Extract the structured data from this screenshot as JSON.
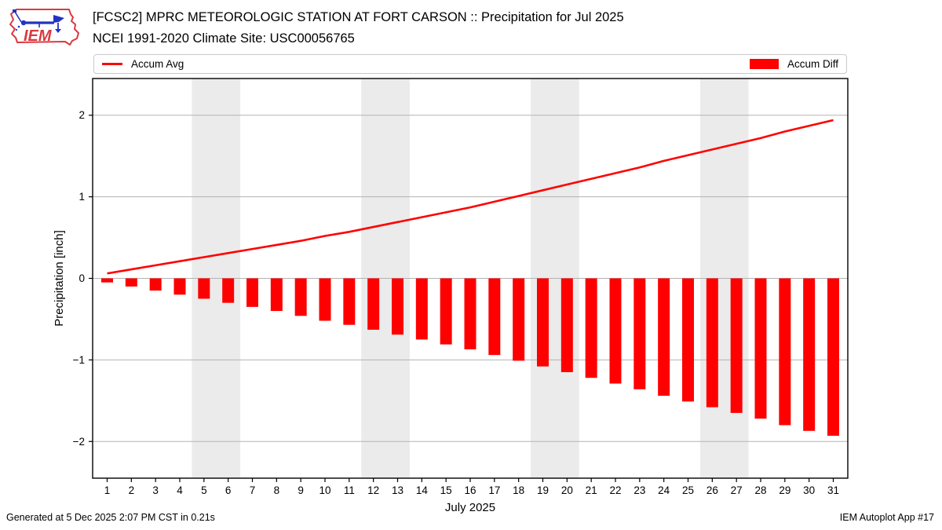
{
  "header": {
    "title_line1": "[FCSC2] MPRC METEOROLOGIC STATION AT FORT CARSON :: Precipitation for Jul 2025",
    "title_line2": "NCEI 1991-2020 Climate Site: USC00056765",
    "logo_text": "IEM"
  },
  "footer": {
    "left": "Generated at 5 Dec 2025 2:07 PM CST in 0.21s",
    "right": "IEM Autoplot App #17"
  },
  "colors": {
    "series_red": "#ff0000",
    "grid": "#b3b3b3",
    "weekend_band": "#ebebeb",
    "frame": "#000000",
    "logo_red": "#d93a40",
    "logo_blue": "#2433c0"
  },
  "chart_data": {
    "type": "combo",
    "title": "[FCSC2] MPRC METEOROLOGIC STATION AT FORT CARSON :: Precipitation for Jul 2025",
    "subtitle": "NCEI 1991-2020 Climate Site: USC00056765",
    "xlabel": "July 2025",
    "ylabel": "Precipitation [inch]",
    "x": [
      1,
      2,
      3,
      4,
      5,
      6,
      7,
      8,
      9,
      10,
      11,
      12,
      13,
      14,
      15,
      16,
      17,
      18,
      19,
      20,
      21,
      22,
      23,
      24,
      25,
      26,
      27,
      28,
      29,
      30,
      31
    ],
    "series": [
      {
        "name": "Accum Avg",
        "type": "line",
        "color": "#ff0000",
        "values": [
          0.06,
          0.11,
          0.16,
          0.21,
          0.26,
          0.31,
          0.36,
          0.41,
          0.46,
          0.52,
          0.57,
          0.63,
          0.69,
          0.75,
          0.81,
          0.87,
          0.94,
          1.01,
          1.08,
          1.15,
          1.22,
          1.29,
          1.36,
          1.44,
          1.51,
          1.58,
          1.65,
          1.72,
          1.8,
          1.87,
          1.94
        ]
      },
      {
        "name": "Accum Diff",
        "type": "bar",
        "color": "#ff0000",
        "values": [
          -0.05,
          -0.1,
          -0.15,
          -0.2,
          -0.25,
          -0.3,
          -0.35,
          -0.4,
          -0.46,
          -0.52,
          -0.57,
          -0.63,
          -0.69,
          -0.75,
          -0.81,
          -0.87,
          -0.94,
          -1.01,
          -1.08,
          -1.15,
          -1.22,
          -1.29,
          -1.36,
          -1.44,
          -1.51,
          -1.58,
          -1.65,
          -1.72,
          -1.8,
          -1.87,
          -1.93
        ]
      }
    ],
    "yticks": [
      -2,
      -1,
      0,
      1,
      2
    ],
    "ylim": [
      -2.45,
      2.45
    ],
    "xlim": [
      0.4,
      31.6
    ],
    "grid": "horizontal",
    "weekend_bands": [
      [
        4.5,
        6.5
      ],
      [
        11.5,
        13.5
      ],
      [
        18.5,
        20.5
      ],
      [
        25.5,
        27.5
      ]
    ],
    "legend_position": "top-bar (line left, bar right)"
  }
}
